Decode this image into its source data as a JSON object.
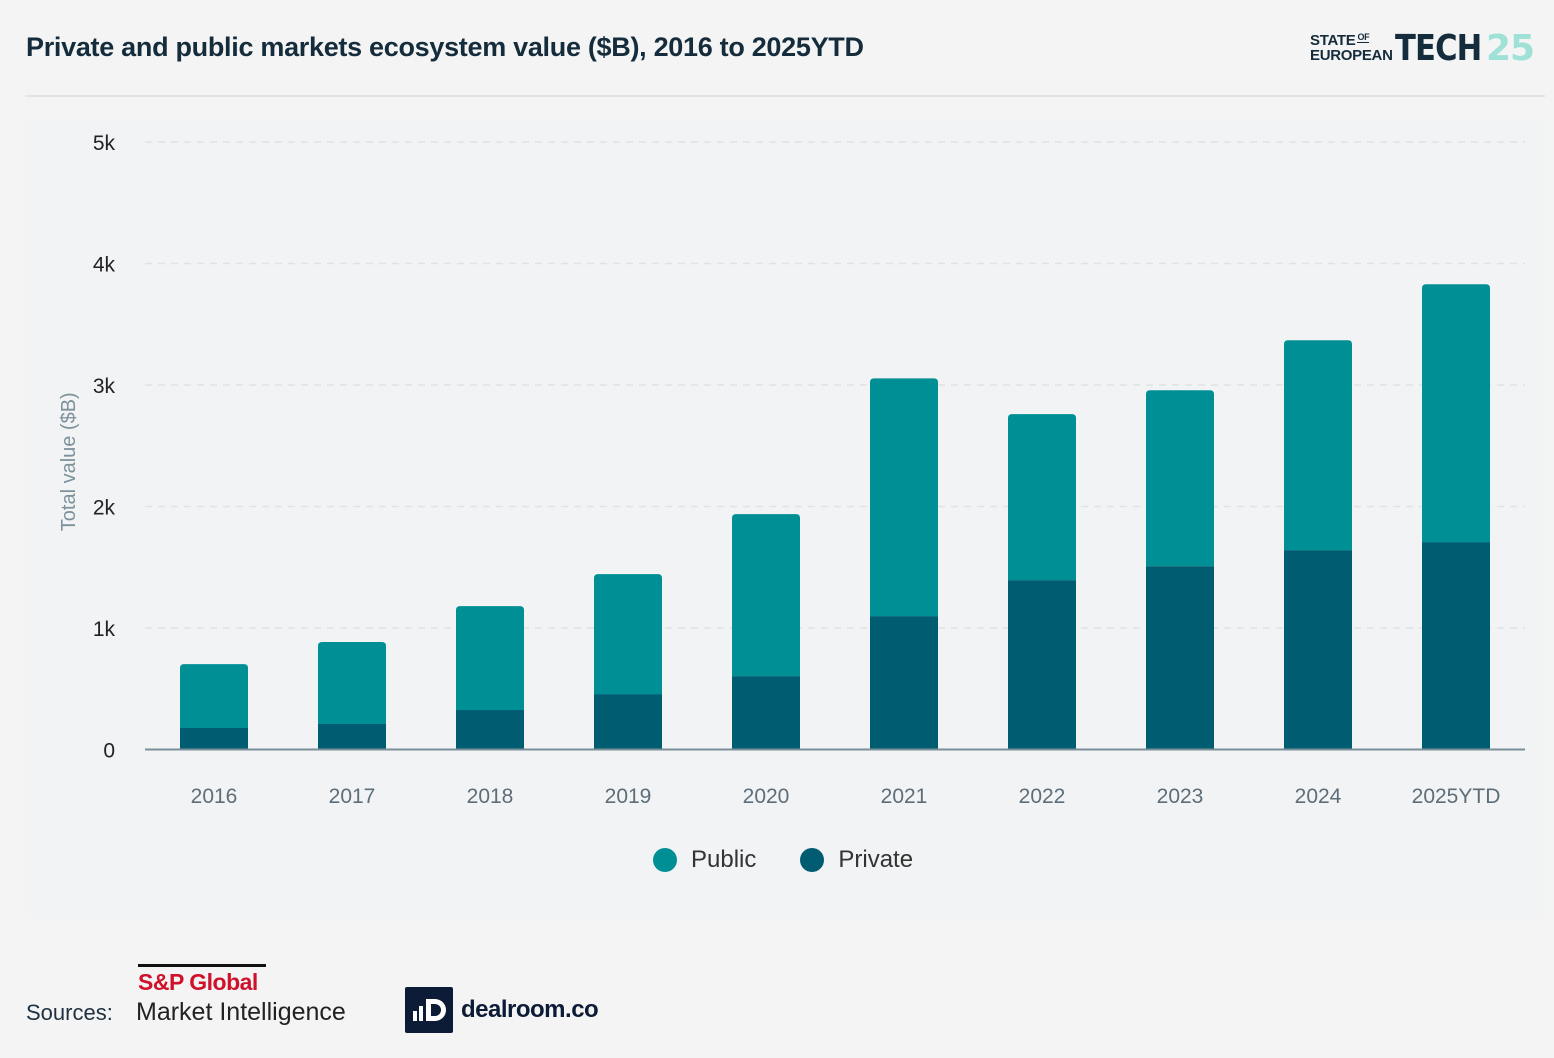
{
  "header": {
    "title": "Private and public markets ecosystem value ($B), 2016 to 2025YTD",
    "brand": {
      "line1": "STATE",
      "of": "OF",
      "line2": "EUROPEAN",
      "tech": "TECH",
      "num": "25"
    }
  },
  "colors": {
    "public": "#008f94",
    "private": "#005c70",
    "grid": "#dfe3e4",
    "axis": "#7b8f99",
    "tick": "#5d6e78",
    "background": "#f2f3f5"
  },
  "chart_data": {
    "type": "bar",
    "stacked": true,
    "title": "Private and public markets ecosystem value ($B), 2016 to 2025YTD",
    "xlabel": "",
    "ylabel": "Total value ($B)",
    "ylim": [
      0,
      5000
    ],
    "yticks": [
      0,
      1000,
      2000,
      3000,
      4000,
      5000
    ],
    "ytick_labels": [
      "0",
      "1k",
      "2k",
      "3k",
      "4k",
      "5k"
    ],
    "grid": true,
    "legend_position": "bottom-center",
    "categories": [
      "2016",
      "2017",
      "2018",
      "2019",
      "2020",
      "2021",
      "2022",
      "2023",
      "2024",
      "2025YTD"
    ],
    "series": [
      {
        "name": "Private",
        "values": [
          177,
          210,
          325,
          456,
          604,
          1098,
          1394,
          1509,
          1641,
          1707
        ]
      },
      {
        "name": "Public",
        "values": [
          526,
          675,
          855,
          987,
          1333,
          1957,
          1366,
          1448,
          1727,
          2122
        ]
      }
    ]
  },
  "legend": [
    {
      "label": "Public",
      "key": "public"
    },
    {
      "label": "Private",
      "key": "private"
    }
  ],
  "footer": {
    "sources_label": "Sources:",
    "sp_name": "S&P Global",
    "sp_sub": "Market Intelligence",
    "dealroom_mark": "ıD",
    "dealroom": "dealroom.co"
  }
}
